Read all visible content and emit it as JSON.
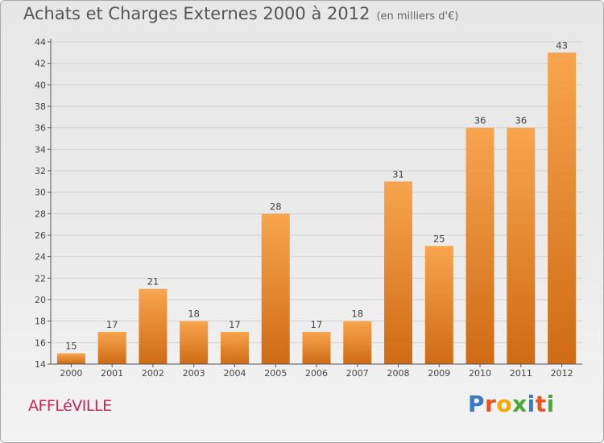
{
  "title": "Achats et Charges Externes 2000 à 2012",
  "unit_note": "(en milliers d'€)",
  "town": "AFFLéVILLE",
  "logo": {
    "text": "Proxiti",
    "letters": [
      {
        "char": "P",
        "color": "#3a79c6"
      },
      {
        "char": "r",
        "color": "#e8531e"
      },
      {
        "char": "o",
        "color": "#f2a900"
      },
      {
        "char": "x",
        "color": "#4aa83a"
      },
      {
        "char": "i",
        "color": "#3a79c6"
      },
      {
        "char": "t",
        "color": "#e8531e"
      },
      {
        "char": "i",
        "color": "#4aa83a"
      }
    ]
  },
  "colors": {
    "bar_top": "#f7a54e",
    "bar_bottom": "#cf6b14",
    "grid": "#d0d0d0",
    "axis": "#555555"
  },
  "chart_data": {
    "type": "bar",
    "title": "Achats et Charges Externes 2000 à 2012",
    "subtitle": "(en milliers d'€)",
    "categories": [
      "2000",
      "2001",
      "2002",
      "2003",
      "2004",
      "2005",
      "2006",
      "2007",
      "2008",
      "2009",
      "2010",
      "2011",
      "2012"
    ],
    "values": [
      15,
      17,
      21,
      18,
      17,
      28,
      17,
      18,
      31,
      25,
      36,
      36,
      43
    ],
    "ylim": [
      14,
      44
    ],
    "yticks": [
      14,
      16,
      18,
      20,
      22,
      24,
      26,
      28,
      30,
      32,
      34,
      36,
      38,
      40,
      42,
      44
    ],
    "grid": true,
    "xlabel": "",
    "ylabel": ""
  }
}
